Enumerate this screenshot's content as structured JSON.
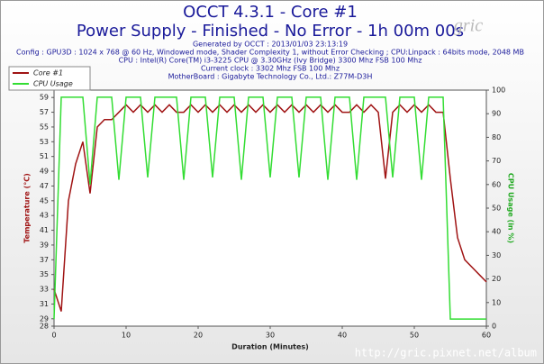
{
  "chart_data": {
    "type": "line",
    "title": "OCCT 4.3.1 - Core #1",
    "subtitle": "Power Supply - Finished - No Error - 1h 00m 00s",
    "info": [
      "Generated by OCCT : 2013/01/03 23:13:19",
      "Config : GPU3D : 1024 x 768 @ 60 Hz, Windowed mode, Shader Complexity 1, without Error Checking ; CPU:Linpack : 64bits mode, 2048 MB",
      "CPU : Intel(R) Core(TM) i3-3225 CPU @ 3.30GHz (Ivy Bridge) 3300 Mhz FSB 100 Mhz",
      "Current clock : 3302 Mhz FSB 100 Mhz",
      "MotherBoard : Gigabyte Technology Co., Ltd.: Z77M-D3H"
    ],
    "watermark": "gric",
    "watermark_url": "http://gric.pixnet.net/album",
    "x_label": "Duration (Minutes)",
    "y_label": "Temperature (°C)",
    "y2_label": "CPU Usage (in %)",
    "x": [
      0,
      1,
      2,
      3,
      4,
      5,
      6,
      7,
      8,
      9,
      10,
      11,
      12,
      13,
      14,
      15,
      16,
      17,
      18,
      19,
      20,
      21,
      22,
      23,
      24,
      25,
      26,
      27,
      28,
      29,
      30,
      31,
      32,
      33,
      34,
      35,
      36,
      37,
      38,
      39,
      40,
      41,
      42,
      43,
      44,
      45,
      46,
      47,
      48,
      49,
      50,
      51,
      52,
      53,
      54,
      55,
      56,
      57,
      58,
      59,
      60
    ],
    "series": [
      {
        "name": "Core #1",
        "color": "#a01414",
        "values": [
          33,
          30,
          45,
          50,
          53,
          46,
          55,
          56,
          56,
          57,
          58,
          57,
          58,
          57,
          58,
          57,
          58,
          57,
          57,
          58,
          57,
          58,
          57,
          58,
          57,
          58,
          57,
          58,
          57,
          58,
          57,
          58,
          57,
          58,
          57,
          58,
          57,
          58,
          57,
          58,
          57,
          57,
          58,
          57,
          58,
          57,
          48,
          57,
          58,
          57,
          58,
          57,
          58,
          57,
          57,
          48,
          40,
          37,
          36,
          35,
          34
        ]
      },
      {
        "name": "CPU Usage",
        "color": "#33dd33",
        "axis": "y2",
        "values": [
          3,
          97,
          97,
          97,
          97,
          60,
          97,
          97,
          97,
          62,
          97,
          97,
          97,
          63,
          97,
          97,
          97,
          97,
          62,
          97,
          97,
          97,
          63,
          97,
          97,
          97,
          62,
          97,
          97,
          97,
          63,
          97,
          97,
          97,
          63,
          97,
          97,
          97,
          62,
          97,
          97,
          97,
          62,
          97,
          97,
          97,
          97,
          63,
          97,
          97,
          97,
          62,
          97,
          97,
          97,
          3,
          3,
          3,
          3,
          3,
          3
        ]
      }
    ],
    "xlim": [
      0,
      60
    ],
    "xticks": [
      0,
      10,
      20,
      30,
      40,
      50,
      60
    ],
    "ylim": [
      28,
      60
    ],
    "yticks": [
      28,
      29,
      31,
      33,
      35,
      37,
      39,
      41,
      43,
      45,
      47,
      49,
      51,
      53,
      55,
      57,
      59
    ],
    "y2lim": [
      0,
      100
    ],
    "y2ticks": [
      0,
      10,
      20,
      30,
      40,
      50,
      60,
      70,
      80,
      90,
      100
    ],
    "legend": "upper-left",
    "grid": false
  }
}
